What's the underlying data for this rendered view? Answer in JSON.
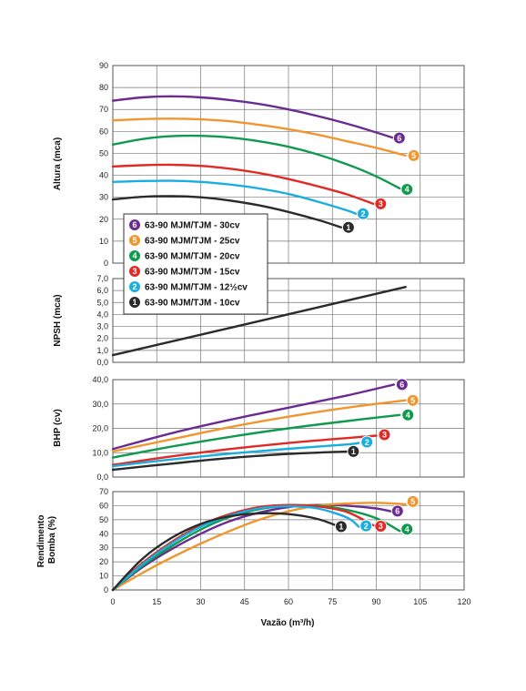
{
  "colors": {
    "6": "#6a2c91",
    "5": "#f0962e",
    "4": "#109a4e",
    "3": "#e02a26",
    "2": "#1aaee0",
    "1": "#2b2b2b"
  },
  "legend": [
    {
      "id": "6",
      "label": "63-90 MJM/TJM - 30cv"
    },
    {
      "id": "5",
      "label": "63-90 MJM/TJM - 25cv"
    },
    {
      "id": "4",
      "label": "63-90 MJM/TJM - 20cv"
    },
    {
      "id": "3",
      "label": "63-90 MJM/TJM - 15cv"
    },
    {
      "id": "2",
      "label": "63-90 MJM/TJM - 12½cv"
    },
    {
      "id": "1",
      "label": "63-90 MJM/TJM - 10cv"
    }
  ],
  "chart_data": [
    {
      "type": "line",
      "ylabel": "Altura (mca)",
      "xlim": [
        0,
        120
      ],
      "ylim": [
        0,
        90
      ],
      "x_ticks": [
        "0",
        "15",
        "30",
        "45",
        "60",
        "75",
        "90",
        "105",
        "120"
      ],
      "y_ticks": [
        "0",
        "10",
        "20",
        "30",
        "40",
        "50",
        "60",
        "70",
        "80",
        "90"
      ],
      "grid": true,
      "legend_position": "bottom-left",
      "series": [
        {
          "id": "6",
          "x": [
            0,
            10,
            20,
            30,
            40,
            50,
            60,
            70,
            80,
            90,
            96
          ],
          "y": [
            74,
            75.5,
            76,
            75.5,
            74.3,
            72.5,
            70,
            67,
            63.5,
            59.5,
            57
          ]
        },
        {
          "id": "5",
          "x": [
            0,
            10,
            20,
            30,
            40,
            50,
            60,
            70,
            80,
            90,
            100
          ],
          "y": [
            65,
            65.6,
            65.8,
            65.5,
            64.6,
            63,
            61,
            58.5,
            55.5,
            52.5,
            49
          ]
        },
        {
          "id": "4",
          "x": [
            0,
            10,
            20,
            30,
            40,
            50,
            60,
            70,
            80,
            90,
            98
          ],
          "y": [
            54,
            56.5,
            57.8,
            58,
            57.2,
            55.5,
            53,
            49.5,
            45,
            39.5,
            34
          ]
        },
        {
          "id": "3",
          "x": [
            0,
            10,
            20,
            30,
            40,
            50,
            60,
            70,
            80,
            89
          ],
          "y": [
            44,
            44.6,
            44.8,
            44.3,
            43,
            41,
            38.3,
            35,
            31.3,
            27
          ]
        },
        {
          "id": "2",
          "x": [
            0,
            10,
            20,
            30,
            40,
            50,
            60,
            70,
            80,
            83
          ],
          "y": [
            37,
            37.4,
            37.5,
            37,
            35.8,
            34,
            31.5,
            28,
            24,
            22.5
          ]
        },
        {
          "id": "1",
          "x": [
            0,
            10,
            20,
            30,
            40,
            50,
            60,
            70,
            78
          ],
          "y": [
            29,
            30.2,
            30.5,
            30,
            28.5,
            26.3,
            23.3,
            19.7,
            16.3
          ]
        }
      ]
    },
    {
      "type": "line",
      "ylabel": "NPSH (mca)",
      "xlim": [
        0,
        120
      ],
      "ylim": [
        0,
        7
      ],
      "y_ticks": [
        "0,0",
        "1,0",
        "2,0",
        "3,0",
        "4,0",
        "5,0",
        "6,0",
        "7,0"
      ],
      "grid": true,
      "series": [
        {
          "x": [
            0,
            100
          ],
          "y": [
            0.6,
            6.3
          ]
        }
      ]
    },
    {
      "type": "line",
      "ylabel": "BHP (cv)",
      "xlim": [
        0,
        120
      ],
      "ylim": [
        0,
        40
      ],
      "y_ticks": [
        "0,0",
        "10,0",
        "20,0",
        "30,0",
        "40,0"
      ],
      "grid": true,
      "series": [
        {
          "id": "6",
          "x": [
            0,
            20,
            40,
            60,
            80,
            96
          ],
          "y": [
            11.5,
            18,
            23.5,
            28.5,
            33.5,
            38
          ]
        },
        {
          "id": "5",
          "x": [
            0,
            20,
            40,
            60,
            80,
            100
          ],
          "y": [
            10.5,
            15.5,
            20.5,
            24.8,
            28.5,
            31.5
          ]
        },
        {
          "id": "4",
          "x": [
            0,
            20,
            40,
            60,
            80,
            98
          ],
          "y": [
            8,
            12.5,
            16.5,
            20,
            23,
            25.5
          ]
        },
        {
          "id": "3",
          "x": [
            0,
            20,
            40,
            60,
            80,
            90
          ],
          "y": [
            5,
            8.5,
            11.5,
            14,
            16,
            17
          ]
        },
        {
          "id": "2",
          "x": [
            0,
            20,
            40,
            60,
            80,
            84
          ],
          "y": [
            4.5,
            7.2,
            9.6,
            11.6,
            13.4,
            14
          ]
        },
        {
          "id": "1",
          "x": [
            0,
            20,
            40,
            60,
            80
          ],
          "y": [
            3,
            5.5,
            7.8,
            9.5,
            10.5
          ]
        }
      ]
    },
    {
      "type": "line",
      "ylabel": "Rendimento Bomba (%)",
      "xlabel": "Vazão (m³/h)",
      "xlim": [
        0,
        120
      ],
      "ylim": [
        0,
        70
      ],
      "y_ticks": [
        "0",
        "10",
        "20",
        "30",
        "40",
        "50",
        "60",
        "70"
      ],
      "grid": true,
      "series": [
        {
          "id": "6",
          "x": [
            0,
            10,
            20,
            30,
            40,
            50,
            60,
            70,
            80,
            90,
            96
          ],
          "y": [
            0,
            16,
            29,
            40,
            49,
            55,
            59,
            60.5,
            60,
            58,
            55.5
          ]
        },
        {
          "id": "5",
          "x": [
            0,
            10,
            20,
            30,
            40,
            50,
            60,
            70,
            80,
            90,
            100
          ],
          "y": [
            0,
            12,
            23,
            33,
            42,
            50,
            56,
            60,
            61.5,
            62,
            61
          ]
        },
        {
          "id": "4",
          "x": [
            0,
            10,
            20,
            30,
            40,
            50,
            60,
            70,
            80,
            90,
            98
          ],
          "y": [
            0,
            17,
            31,
            43,
            52,
            57.5,
            60,
            60,
            57,
            51,
            42
          ]
        },
        {
          "id": "3",
          "x": [
            0,
            10,
            20,
            30,
            40,
            50,
            60,
            70,
            80,
            89
          ],
          "y": [
            0,
            19,
            34,
            46,
            54,
            59,
            60.5,
            59.5,
            55.5,
            46
          ]
        },
        {
          "id": "2",
          "x": [
            0,
            10,
            20,
            30,
            40,
            50,
            60,
            70,
            80,
            84
          ],
          "y": [
            0,
            18,
            33,
            45,
            53,
            58,
            59.5,
            58,
            51.5,
            45
          ]
        },
        {
          "id": "1",
          "x": [
            0,
            10,
            20,
            30,
            40,
            50,
            60,
            70,
            78
          ],
          "y": [
            0,
            22,
            37,
            47,
            52.5,
            54.5,
            54,
            50.5,
            44.5
          ]
        }
      ]
    }
  ]
}
